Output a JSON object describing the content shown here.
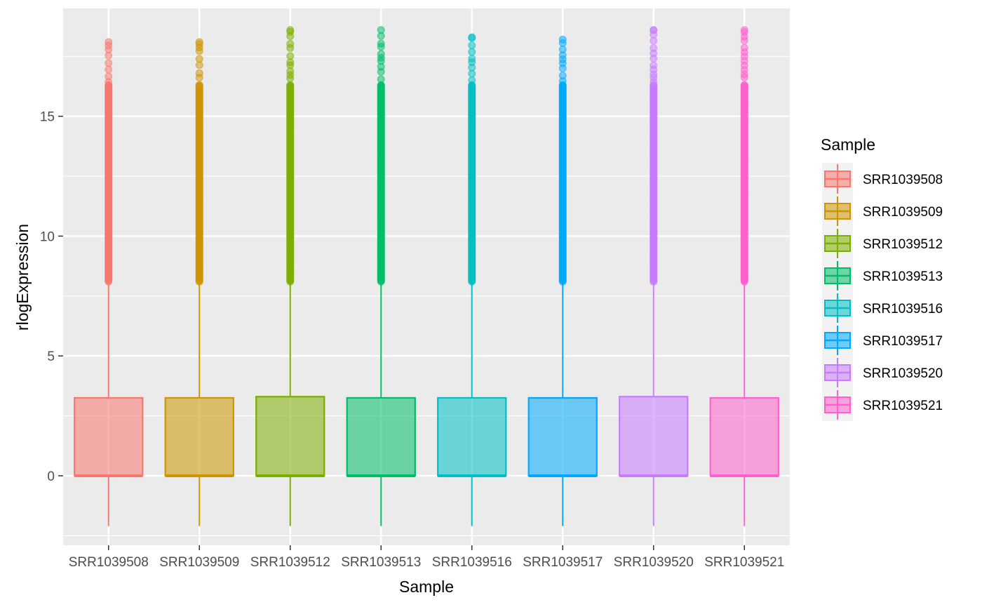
{
  "chart_data": {
    "type": "boxplot",
    "title": "",
    "xlabel": "Sample",
    "ylabel": "rlogExpression",
    "ylim": [
      -2.9,
      19.5
    ],
    "yticks": [
      0,
      5,
      10,
      15
    ],
    "grid": true,
    "legend": {
      "title": "Sample",
      "position": "right"
    },
    "categories": [
      "SRR1039508",
      "SRR1039509",
      "SRR1039512",
      "SRR1039513",
      "SRR1039516",
      "SRR1039517",
      "SRR1039520",
      "SRR1039521"
    ],
    "colors": [
      "#F8766D",
      "#CD9600",
      "#7CAE00",
      "#00BE67",
      "#00BFC4",
      "#00A9FF",
      "#C77CFF",
      "#FF61CC"
    ],
    "series": [
      {
        "name": "SRR1039508",
        "min": -2.1,
        "q1": 0.0,
        "median": 0.0,
        "q3": 3.25,
        "whisker_high": 8.1,
        "outlier_max": 18.1
      },
      {
        "name": "SRR1039509",
        "min": -2.1,
        "q1": 0.0,
        "median": 0.0,
        "q3": 3.25,
        "whisker_high": 8.1,
        "outlier_max": 18.1
      },
      {
        "name": "SRR1039512",
        "min": -2.1,
        "q1": 0.0,
        "median": 0.0,
        "q3": 3.3,
        "whisker_high": 8.1,
        "outlier_max": 18.6
      },
      {
        "name": "SRR1039513",
        "min": -2.1,
        "q1": 0.0,
        "median": 0.0,
        "q3": 3.25,
        "whisker_high": 8.1,
        "outlier_max": 18.6
      },
      {
        "name": "SRR1039516",
        "min": -2.1,
        "q1": 0.0,
        "median": 0.0,
        "q3": 3.25,
        "whisker_high": 8.1,
        "outlier_max": 18.3
      },
      {
        "name": "SRR1039517",
        "min": -2.1,
        "q1": 0.0,
        "median": 0.0,
        "q3": 3.25,
        "whisker_high": 8.1,
        "outlier_max": 18.2
      },
      {
        "name": "SRR1039520",
        "min": -2.1,
        "q1": 0.0,
        "median": 0.0,
        "q3": 3.3,
        "whisker_high": 8.1,
        "outlier_max": 18.6
      },
      {
        "name": "SRR1039521",
        "min": -2.1,
        "q1": 0.0,
        "median": 0.0,
        "q3": 3.25,
        "whisker_high": 8.1,
        "outlier_max": 18.6
      }
    ]
  }
}
